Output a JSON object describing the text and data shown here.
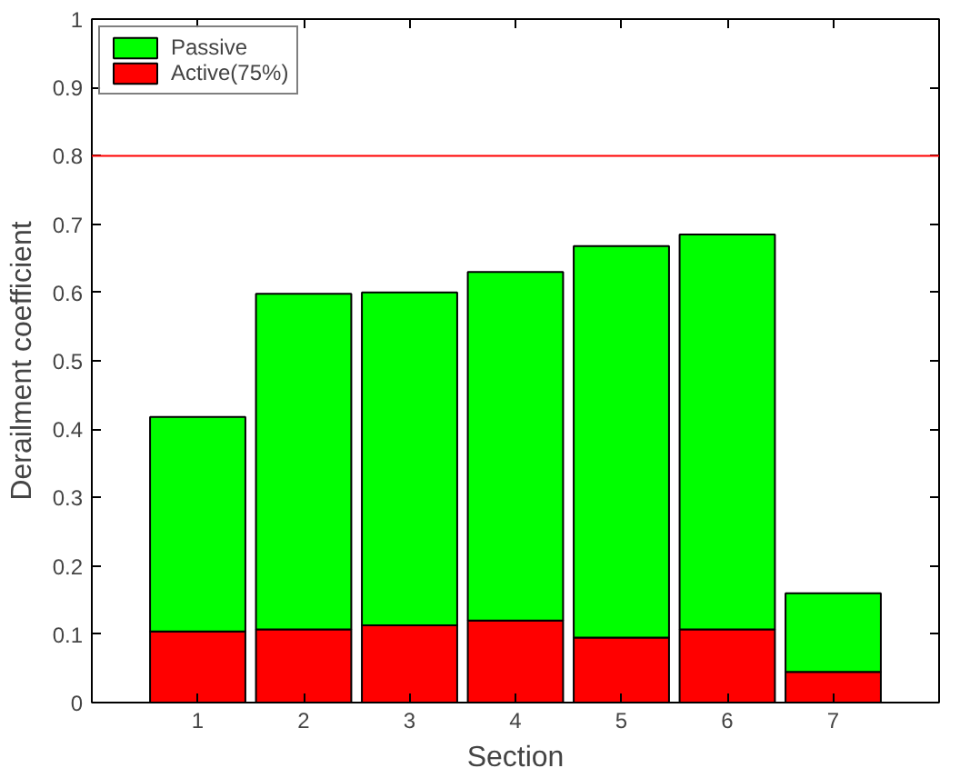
{
  "chart_data": {
    "type": "bar",
    "stacked": true,
    "xlabel": "Section",
    "ylabel": "Derailment coefficient",
    "categories": [
      "1",
      "2",
      "3",
      "4",
      "5",
      "6",
      "7"
    ],
    "series": [
      {
        "name": "Active(75%)",
        "color": "#ff0000",
        "values": [
          0.104,
          0.107,
          0.113,
          0.12,
          0.095,
          0.107,
          0.045
        ]
      },
      {
        "name": "Passive",
        "color": "#00ff00",
        "values": [
          0.314,
          0.491,
          0.487,
          0.51,
          0.573,
          0.578,
          0.115
        ]
      }
    ],
    "ylim": [
      0,
      1
    ],
    "yticks": [
      0,
      0.1,
      0.2,
      0.3,
      0.4,
      0.5,
      0.6,
      0.7,
      0.8,
      0.9,
      1
    ],
    "ref_lines": [
      {
        "axis": "y",
        "value": 0.8,
        "color": "#ff0000"
      }
    ],
    "legend": "top left",
    "grid": false
  }
}
